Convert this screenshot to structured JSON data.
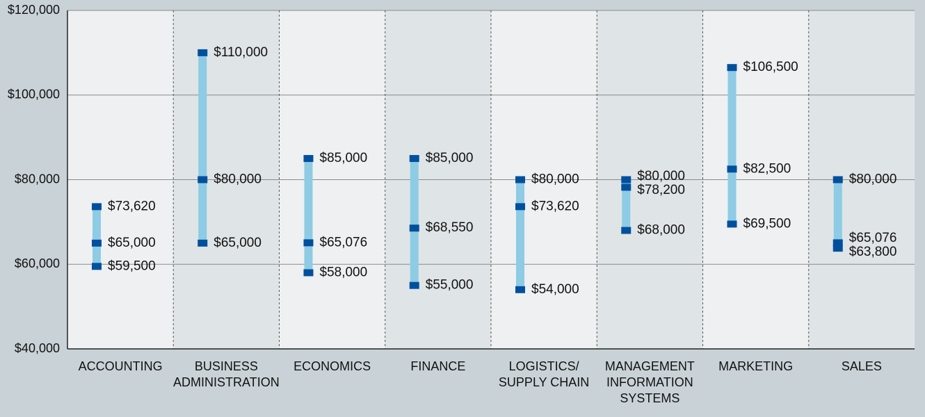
{
  "chart_data": {
    "type": "range",
    "categories": [
      [
        "ACCOUNTING"
      ],
      [
        "BUSINESS",
        "ADMINISTRATION"
      ],
      [
        "ECONOMICS"
      ],
      [
        "FINANCE"
      ],
      [
        "LOGISTICS/",
        "SUPPLY CHAIN"
      ],
      [
        "MANAGEMENT",
        "INFORMATION",
        "SYSTEMS"
      ],
      [
        "MARKETING"
      ],
      [
        "SALES"
      ]
    ],
    "series": [
      {
        "color": "#00509d",
        "values": [
          59500,
          65000,
          58000,
          55000,
          54000,
          68000,
          69500,
          63800
        ],
        "value_labels": [
          "$59,500",
          "$65,000",
          "$58,000",
          "$55,000",
          "$54,000",
          "$68,000",
          "$69,500",
          "$63,800"
        ]
      },
      {
        "color": "#00509d",
        "values": [
          65000,
          80000,
          65076,
          68550,
          73620,
          78200,
          82500,
          65076
        ],
        "value_labels": [
          "$65,000",
          "$80,000",
          "$65,076",
          "$68,550",
          "$73,620",
          "$78,200",
          "$82,500",
          "$65,076"
        ]
      },
      {
        "color": "#00509d",
        "values": [
          73620,
          110000,
          85000,
          85000,
          80000,
          80000,
          106500,
          80000
        ],
        "value_labels": [
          "$73,620",
          "$110,000",
          "$85,000",
          "$85,000",
          "$80,000",
          "$80,000",
          "$106,500",
          "$80,000"
        ]
      }
    ],
    "range_color": "#8ecbe4",
    "ylim": [
      40000,
      120000
    ],
    "yticks": [
      {
        "value": 40000,
        "label": "$40,000"
      },
      {
        "value": 60000,
        "label": "$60,000"
      },
      {
        "value": 80000,
        "label": "$80,000"
      },
      {
        "value": 100000,
        "label": "$100,000"
      },
      {
        "value": 120000,
        "label": "$120,000"
      }
    ],
    "grid": true
  }
}
